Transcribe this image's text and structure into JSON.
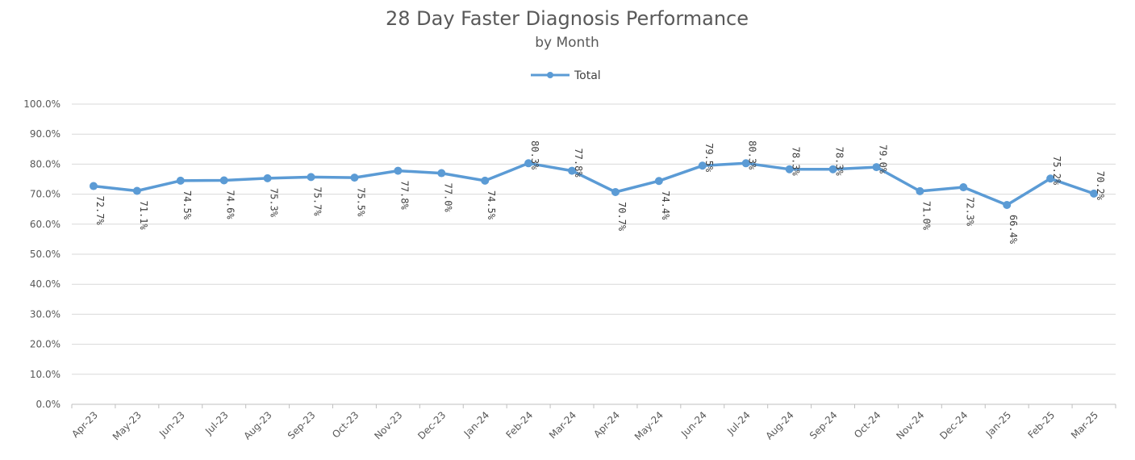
{
  "chart_data": {
    "type": "line",
    "title": "28 Day Faster Diagnosis Performance",
    "subtitle": "by Month",
    "categories": [
      "Apr-23",
      "May-23",
      "Jun-23",
      "Jul-23",
      "Aug-23",
      "Sep-23",
      "Oct-23",
      "Nov-23",
      "Dec-23",
      "Jan-24",
      "Feb-24",
      "Mar-24",
      "Apr-24",
      "May-24",
      "Jun-24",
      "Jul-24",
      "Aug-24",
      "Sep-24",
      "Oct-24",
      "Nov-24",
      "Dec-24",
      "Jan-25",
      "Feb-25",
      "Mar-25"
    ],
    "series": [
      {
        "name": "Total",
        "color": "#5b9bd5",
        "values": [
          72.7,
          71.1,
          74.5,
          74.6,
          75.3,
          75.7,
          75.5,
          77.8,
          77.0,
          74.5,
          80.3,
          77.8,
          70.7,
          74.4,
          79.5,
          80.3,
          78.3,
          78.3,
          79.0,
          71.0,
          72.3,
          66.4,
          75.2,
          70.2
        ],
        "labels": [
          "72.7%",
          "71.1%",
          "74.5%",
          "74.6%",
          "75.3%",
          "75.7%",
          "75.5%",
          "77.8%",
          "77.0%",
          "74.5%",
          "80.3%",
          "77.8%",
          "70.7%",
          "74.4%",
          "79.5%",
          "80.3%",
          "78.3%",
          "78.3%",
          "79.0%",
          "71.0%",
          "72.3%",
          "66.4%",
          "75.2%",
          "70.2%"
        ],
        "label_side": [
          "below",
          "below",
          "below",
          "below",
          "below",
          "below",
          "below",
          "below",
          "below",
          "below",
          "above",
          "above",
          "below",
          "below",
          "above",
          "above",
          "above",
          "above",
          "above",
          "below",
          "below",
          "below",
          "above",
          "above"
        ]
      }
    ],
    "ylim": [
      0,
      100
    ],
    "yticks": [
      "0.0%",
      "10.0%",
      "20.0%",
      "30.0%",
      "40.0%",
      "50.0%",
      "60.0%",
      "70.0%",
      "80.0%",
      "90.0%",
      "100.0%"
    ],
    "grid": true,
    "legend": "top-center",
    "xlabel": "",
    "ylabel": ""
  }
}
